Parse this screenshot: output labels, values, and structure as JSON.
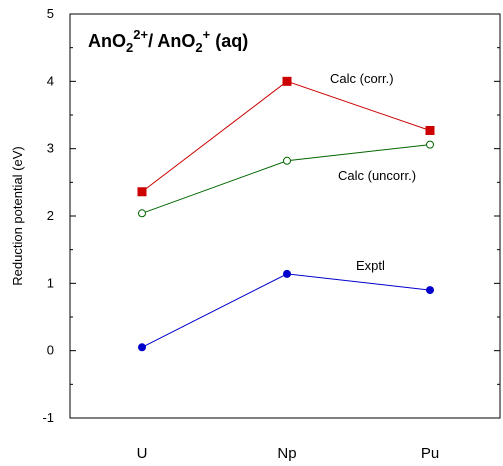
{
  "chart_data": {
    "type": "line",
    "title_parts": {
      "an1": "AnO",
      "sub1": "2",
      "sup1": "2+",
      "sep": "/ AnO",
      "sub2": "2",
      "sup2": "+",
      "tail": " (aq)"
    },
    "ylabel": "Reduction potential (eV)",
    "xlabel": "",
    "categories": [
      "U",
      "Np",
      "Pu"
    ],
    "ylim": [
      -1,
      5
    ],
    "yticks": [
      "-1",
      "0",
      "1",
      "2",
      "3",
      "4",
      "5"
    ],
    "grid": false,
    "series": [
      {
        "name": "Calc (corr.)",
        "values": [
          2.36,
          4.0,
          3.27
        ],
        "color": "#cc0000",
        "marker": "square-filled"
      },
      {
        "name": "Calc (uncorr.)",
        "values": [
          2.04,
          2.82,
          3.06
        ],
        "color": "#006600",
        "marker": "circle-open"
      },
      {
        "name": "Exptl",
        "values": [
          0.05,
          1.14,
          0.9
        ],
        "color": "#0000cc",
        "marker": "circle-filled"
      }
    ]
  }
}
